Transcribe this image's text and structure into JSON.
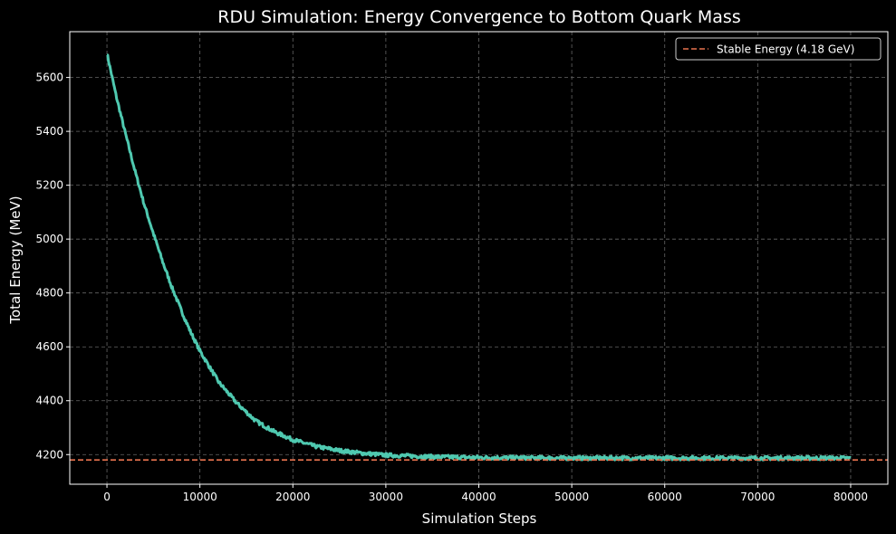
{
  "chart_data": {
    "type": "line",
    "title": "RDU Simulation: Energy Convergence to Bottom Quark Mass",
    "xlabel": "Simulation Steps",
    "ylabel": "Total Energy (MeV)",
    "xlim": [
      -4000,
      84000
    ],
    "ylim": [
      4090,
      5770
    ],
    "xticks": [
      0,
      10000,
      20000,
      30000,
      40000,
      50000,
      60000,
      70000,
      80000
    ],
    "yticks": [
      4200,
      4400,
      4600,
      4800,
      5000,
      5200,
      5400,
      5600
    ],
    "grid": true,
    "legend_position": "top-right",
    "series": [
      {
        "type": "line",
        "color": "#4fc9b0",
        "x": [
          0,
          1000,
          2000,
          3000,
          4000,
          5000,
          6000,
          7000,
          8000,
          9000,
          10000,
          12000,
          14000,
          16000,
          18000,
          20000,
          22500,
          25000,
          27500,
          30000,
          35000,
          40000,
          45000,
          50000,
          55000,
          60000,
          65000,
          70000,
          75000,
          80000
        ],
        "values": [
          5690,
          5530,
          5390,
          5255,
          5130,
          5020,
          4915,
          4820,
          4735,
          4655,
          4585,
          4470,
          4390,
          4325,
          4285,
          4255,
          4230,
          4215,
          4205,
          4198,
          4192,
          4189,
          4188,
          4187,
          4187,
          4187,
          4187,
          4187,
          4187,
          4187
        ],
        "band": 14
      },
      {
        "name": "Stable Energy (4.18 GeV)",
        "type": "hline",
        "y": 4180,
        "color": "#e8734f",
        "style": "dashed"
      }
    ]
  }
}
